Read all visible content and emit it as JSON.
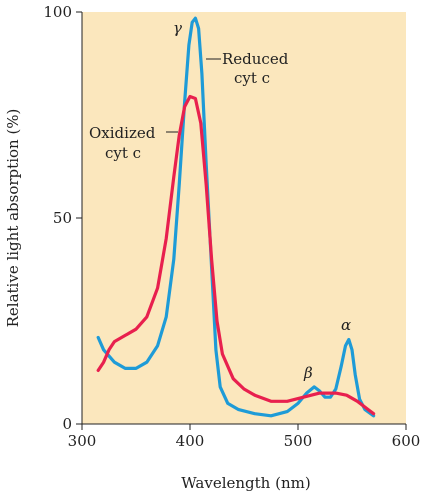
{
  "chart_data": {
    "type": "line",
    "xlabel": "Wavelength (nm)",
    "ylabel": "Relative light absorption (%)",
    "xlim": [
      300,
      600
    ],
    "ylim": [
      0,
      100
    ],
    "x_ticks": [
      "300",
      "400",
      "500",
      "600"
    ],
    "y_ticks": [
      "0",
      "50",
      "100"
    ],
    "grid": false,
    "legend": "none",
    "background_color": "#fbe7bd",
    "series": [
      {
        "color": "#1e9bd7",
        "points": [
          [
            315,
            21
          ],
          [
            320,
            18
          ],
          [
            330,
            15
          ],
          [
            340,
            13.5
          ],
          [
            350,
            13.5
          ],
          [
            360,
            15
          ],
          [
            370,
            19
          ],
          [
            378,
            26
          ],
          [
            385,
            40
          ],
          [
            390,
            58
          ],
          [
            395,
            78
          ],
          [
            399,
            92
          ],
          [
            402,
            97.5
          ],
          [
            405,
            98.5
          ],
          [
            408,
            96
          ],
          [
            411,
            85
          ],
          [
            415,
            63
          ],
          [
            420,
            38
          ],
          [
            424,
            18
          ],
          [
            428,
            9
          ],
          [
            435,
            5
          ],
          [
            445,
            3.5
          ],
          [
            460,
            2.5
          ],
          [
            475,
            2
          ],
          [
            490,
            3
          ],
          [
            500,
            5
          ],
          [
            508,
            7.5
          ],
          [
            515,
            9
          ],
          [
            520,
            8
          ],
          [
            525,
            6.5
          ],
          [
            530,
            6.5
          ],
          [
            535,
            8.5
          ],
          [
            540,
            14
          ],
          [
            544,
            19
          ],
          [
            547,
            20.5
          ],
          [
            550,
            18
          ],
          [
            553,
            12
          ],
          [
            557,
            6
          ],
          [
            562,
            3.5
          ],
          [
            570,
            2
          ]
        ]
      },
      {
        "color": "#e8204e",
        "points": [
          [
            315,
            13
          ],
          [
            320,
            15
          ],
          [
            325,
            18
          ],
          [
            330,
            20
          ],
          [
            340,
            21.5
          ],
          [
            350,
            23
          ],
          [
            360,
            26
          ],
          [
            370,
            33
          ],
          [
            378,
            45
          ],
          [
            385,
            60
          ],
          [
            390,
            70
          ],
          [
            395,
            77
          ],
          [
            400,
            79.5
          ],
          [
            405,
            79
          ],
          [
            410,
            73
          ],
          [
            415,
            58
          ],
          [
            420,
            40
          ],
          [
            425,
            25
          ],
          [
            430,
            17
          ],
          [
            440,
            11
          ],
          [
            450,
            8.5
          ],
          [
            460,
            7
          ],
          [
            475,
            5.5
          ],
          [
            490,
            5.5
          ],
          [
            505,
            6.5
          ],
          [
            520,
            7.5
          ],
          [
            535,
            7.5
          ],
          [
            545,
            7
          ],
          [
            555,
            5.5
          ],
          [
            565,
            3.5
          ],
          [
            570,
            2.5
          ]
        ]
      }
    ],
    "annotations": [
      {
        "text": "Reduced",
        "x": 408,
        "y": 88
      },
      {
        "text": "cyt c",
        "x": 408,
        "y": 88
      },
      {
        "text": "Oxidized",
        "x": 390,
        "y": 70
      },
      {
        "text": "cyt c",
        "x": 390,
        "y": 70
      },
      {
        "text": "γ",
        "x": 402,
        "y": 98
      },
      {
        "text": "β",
        "x": 515,
        "y": 9
      },
      {
        "text": "α",
        "x": 547,
        "y": 20
      }
    ]
  }
}
